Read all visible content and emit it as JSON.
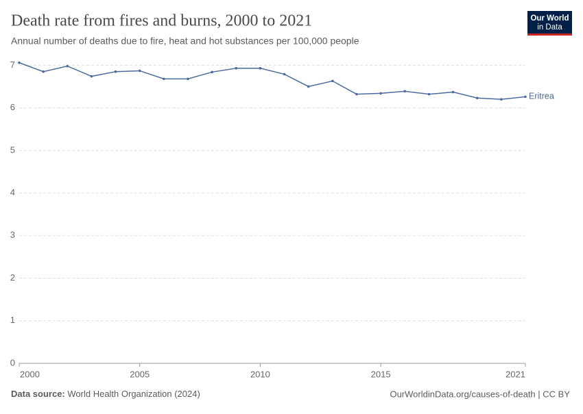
{
  "chart_data": {
    "type": "line",
    "title": "Death rate from fires and burns, 2000 to 2021",
    "subtitle": "Annual number of deaths due to fire, heat and hot substances per 100,000 people",
    "x": [
      2000,
      2001,
      2002,
      2003,
      2004,
      2005,
      2006,
      2007,
      2008,
      2009,
      2010,
      2011,
      2012,
      2013,
      2014,
      2015,
      2016,
      2017,
      2018,
      2019,
      2020,
      2021
    ],
    "series": [
      {
        "name": "Eritrea",
        "color": "#4c6a9c",
        "values": [
          7.06,
          6.85,
          6.98,
          6.74,
          6.85,
          6.87,
          6.68,
          6.68,
          6.84,
          6.93,
          6.93,
          6.79,
          6.5,
          6.63,
          6.32,
          6.34,
          6.39,
          6.32,
          6.37,
          6.23,
          6.2,
          6.26
        ]
      }
    ],
    "xlim": [
      2000,
      2021
    ],
    "xticks": [
      2000,
      2005,
      2010,
      2015,
      2021
    ],
    "ylim": [
      0,
      7.07
    ],
    "yticks": [
      0,
      1,
      2,
      3,
      4,
      5,
      6,
      7
    ],
    "grid": true
  },
  "logo": {
    "line1": "Our World",
    "line2": "in Data"
  },
  "footer": {
    "source_label": "Data source:",
    "source": "World Health Organization (2024)",
    "url": "OurWorldinData.org/causes-of-death | CC BY"
  }
}
